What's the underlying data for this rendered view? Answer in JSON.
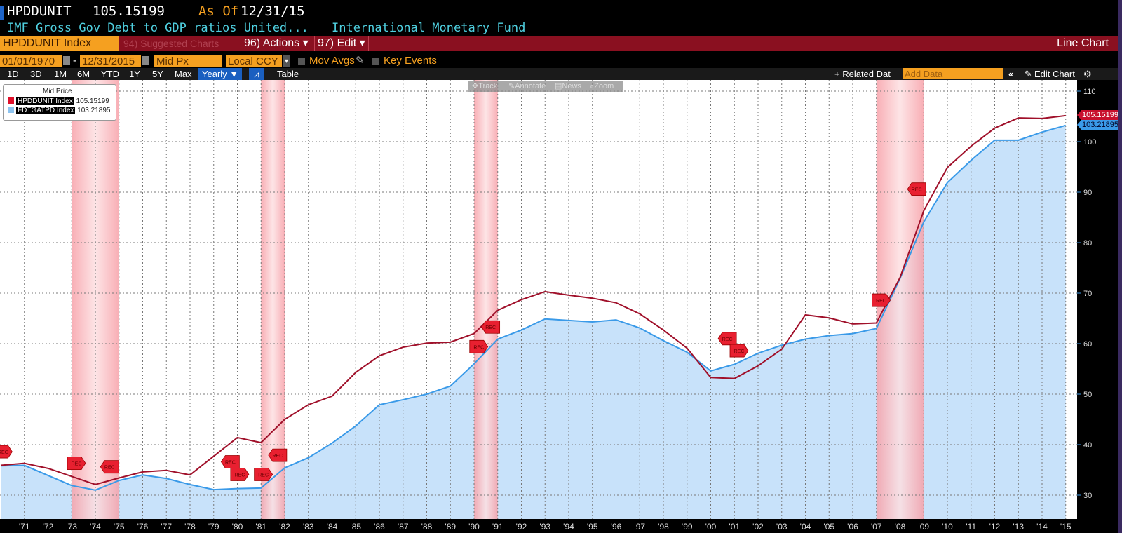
{
  "header": {
    "ticker": "HPDDUNIT",
    "last_value": "105.15199",
    "as_of_label": "As Of",
    "as_of_date": "12/31/15",
    "description": "IMF Gross Gov Debt to GDP ratios United...",
    "source": "International Monetary Fund"
  },
  "menubar": {
    "security": "HPDDUNIT Index",
    "suggested": "94) Suggested Charts",
    "actions": "96) Actions ▾",
    "edit": "97) Edit ▾",
    "chart_type": "Line Chart"
  },
  "controls": {
    "start_date": "01/01/1970",
    "dash": "-",
    "end_date": "12/31/2015",
    "price_field": "Mid Px",
    "currency": "Local CCY",
    "currency_arrow": "▾",
    "mov_avgs": "Mov Avgs",
    "key_events": "Key Events"
  },
  "periods": {
    "items": [
      "1D",
      "3D",
      "1M",
      "6M",
      "YTD",
      "1Y",
      "5Y",
      "Max"
    ],
    "frequency": "Yearly ▼",
    "table": "Table",
    "related": "+ Related Dat",
    "add_data_placeholder": "Add Data",
    "collapse": "«",
    "edit_chart": "Edit Chart",
    "gear": "⚙"
  },
  "chart_tools": {
    "track": "Track",
    "annotate": "Annotate",
    "news": "News",
    "zoom": "Zoom"
  },
  "legend": {
    "title": "Mid Price",
    "items": [
      {
        "name": "HPDDUNIT Index",
        "value": "105.15199",
        "color": "#e0102a"
      },
      {
        "name": "FDTGATPD Index",
        "value": "103.21895",
        "color": "#8ec4f0"
      }
    ]
  },
  "chart_data": {
    "type": "line",
    "x": [
      1970,
      1971,
      1972,
      1973,
      1974,
      1975,
      1976,
      1977,
      1978,
      1979,
      1980,
      1981,
      1982,
      1983,
      1984,
      1985,
      1986,
      1987,
      1988,
      1989,
      1990,
      1991,
      1992,
      1993,
      1994,
      1995,
      1996,
      1997,
      1998,
      1999,
      2000,
      2001,
      2002,
      2003,
      2004,
      2005,
      2006,
      2007,
      2008,
      2009,
      2010,
      2011,
      2012,
      2013,
      2014,
      2015
    ],
    "series": [
      {
        "name": "HPDDUNIT Index",
        "color": "#a0102a",
        "last_label": "105.15199",
        "values": [
          35.9,
          36.3,
          35.3,
          33.7,
          32.1,
          33.4,
          34.6,
          34.9,
          34.0,
          37.7,
          41.4,
          40.4,
          45.0,
          47.9,
          49.6,
          54.3,
          57.6,
          59.3,
          60.1,
          60.3,
          62.0,
          66.6,
          68.7,
          70.3,
          69.6,
          69.0,
          68.1,
          65.9,
          62.7,
          59.1,
          53.3,
          53.1,
          55.6,
          58.9,
          65.7,
          65.1,
          63.9,
          64.1,
          73.1,
          86.3,
          94.9,
          99.1,
          102.7,
          104.7,
          104.6,
          105.15199
        ]
      },
      {
        "name": "FDTGATPD Index",
        "color": "#3a9ae8",
        "last_label": "103.21895",
        "values": [
          35.8,
          35.9,
          33.9,
          31.9,
          31.0,
          32.9,
          34.0,
          33.3,
          32.1,
          31.1,
          31.3,
          31.4,
          35.4,
          37.4,
          40.3,
          43.7,
          47.9,
          48.9,
          50.0,
          51.6,
          56.0,
          60.9,
          62.7,
          64.9,
          64.6,
          64.3,
          64.7,
          63.1,
          60.6,
          58.3,
          54.6,
          55.9,
          58.1,
          59.7,
          60.9,
          61.6,
          62.0,
          63.0,
          72.9,
          84.1,
          91.9,
          96.3,
          100.3,
          100.3,
          101.9,
          103.21895
        ]
      }
    ],
    "recessions": [
      [
        1973,
        1975
      ],
      [
        1981,
        1982
      ],
      [
        1990,
        1991
      ],
      [
        2007,
        2009
      ]
    ],
    "events": [
      {
        "label": "REC",
        "year": 1970.1,
        "value": 38.6,
        "dir": "right"
      },
      {
        "label": "REC",
        "year": 1973.2,
        "value": 36.3,
        "dir": "right"
      },
      {
        "label": "REC",
        "year": 1974.6,
        "value": 35.6,
        "dir": "left"
      },
      {
        "label": "REC",
        "year": 1979.7,
        "value": 36.6,
        "dir": "left"
      },
      {
        "label": "REC",
        "year": 1980.1,
        "value": 34.1,
        "dir": "right"
      },
      {
        "label": "REC",
        "year": 1981.1,
        "value": 34.1,
        "dir": "right"
      },
      {
        "label": "REC",
        "year": 1981.7,
        "value": 37.9,
        "dir": "left"
      },
      {
        "label": "REC",
        "year": 1990.2,
        "value": 59.4,
        "dir": "right"
      },
      {
        "label": "REC",
        "year": 1990.7,
        "value": 63.3,
        "dir": "left"
      },
      {
        "label": "REC",
        "year": 2000.7,
        "value": 61.0,
        "dir": "left"
      },
      {
        "label": "REC",
        "year": 2001.2,
        "value": 58.6,
        "dir": "right"
      },
      {
        "label": "REC",
        "year": 2007.2,
        "value": 68.6,
        "dir": "right"
      },
      {
        "label": "REC",
        "year": 2008.7,
        "value": 90.6,
        "dir": "left"
      }
    ],
    "ylim": [
      25,
      113
    ],
    "yticks": [
      "30",
      "40",
      "50",
      "60",
      "70",
      "80",
      "90",
      "100",
      "110"
    ],
    "xticks": [
      "'71",
      "'72",
      "'73",
      "'74",
      "'75",
      "'76",
      "'77",
      "'78",
      "'79",
      "'80",
      "'81",
      "'82",
      "'83",
      "'84",
      "'85",
      "'86",
      "'87",
      "'88",
      "'89",
      "'90",
      "'91",
      "'92",
      "'93",
      "'94",
      "'95",
      "'96",
      "'97",
      "'98",
      "'99",
      "'00",
      "'01",
      "'02",
      "'03",
      "'04",
      "'05",
      "'06",
      "'07",
      "'08",
      "'09",
      "'10",
      "'11",
      "'12",
      "'13",
      "'14",
      "'15"
    ],
    "grid": true,
    "legend_position": "top-left"
  }
}
